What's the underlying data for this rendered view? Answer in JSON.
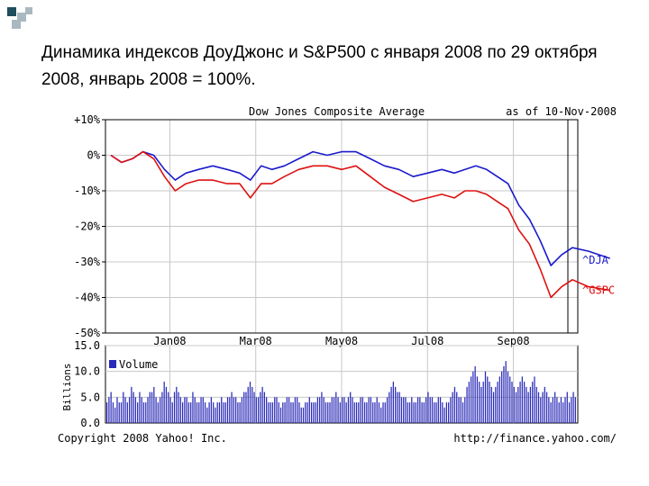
{
  "slide": {
    "title": "Динамика индексов ДоуДжонс и S&P500 с января 2008 по 29 октября 2008, январь 2008 = 100%."
  },
  "chart": {
    "header_title": "Dow Jones Composite Average",
    "header_date": "as of 10-Nov-2008",
    "copyright": "Copyright 2008 Yahoo! Inc.",
    "url": "http://finance.yahoo.com/",
    "volume_legend": "Volume",
    "volume_axis_label": "Billions"
  },
  "colors": {
    "dja": "#1a1acc",
    "gspc": "#dd1111",
    "volume": "#2a2ab8",
    "grid": "#c8c8c8",
    "frame": "#000000",
    "bullet_dark": "#1f4e5f",
    "bullet_light": "#aab8c0"
  },
  "chart_data": [
    {
      "type": "line",
      "title": "Dow Jones Composite Average",
      "y_tick_labels": [
        "+10%",
        "0%",
        "-10%",
        "-20%",
        "-30%",
        "-40%",
        "-50%"
      ],
      "y_ticks": [
        10,
        0,
        -10,
        -20,
        -30,
        -40,
        -50
      ],
      "ylim": [
        -50,
        10
      ],
      "x_tick_labels": [
        "Jan08",
        "Mar08",
        "May08",
        "Jul08",
        "Sep08"
      ],
      "x_ticks": [
        "2008-01",
        "2008-03",
        "2008-05",
        "2008-07",
        "2008-09"
      ],
      "xlim": [
        "2007-12",
        "2008-11"
      ],
      "grid": true,
      "legend": "labels at right end of lines",
      "series": [
        {
          "name": "^DJA",
          "x": [
            "2007-12",
            "2007-12",
            "2007-12",
            "2007-12",
            "2008-01",
            "2008-01",
            "2008-01",
            "2008-01",
            "2008-02",
            "2008-02",
            "2008-02",
            "2008-03",
            "2008-03",
            "2008-03",
            "2008-03",
            "2008-04",
            "2008-04",
            "2008-04",
            "2008-05",
            "2008-05",
            "2008-05",
            "2008-06",
            "2008-06",
            "2008-06",
            "2008-07",
            "2008-07",
            "2008-07",
            "2008-08",
            "2008-08",
            "2008-08",
            "2008-08",
            "2008-09",
            "2008-09",
            "2008-09",
            "2008-09",
            "2008-10",
            "2008-10",
            "2008-10",
            "2008-10",
            "2008-11",
            "2008-11"
          ],
          "y": [
            0,
            -2,
            -1,
            1,
            0,
            -4,
            -7,
            -5,
            -4,
            -3,
            -4,
            -5,
            -7,
            -3,
            -4,
            -3,
            -1,
            1,
            0,
            1,
            1,
            -1,
            -3,
            -4,
            -6,
            -5,
            -4,
            -5,
            -4,
            -3,
            -4,
            -6,
            -8,
            -14,
            -18,
            -24,
            -31,
            -28,
            -26,
            -27,
            -29
          ],
          "color": "#1a1acc"
        },
        {
          "name": "^GSPC",
          "x": [
            "2007-12",
            "2007-12",
            "2007-12",
            "2007-12",
            "2008-01",
            "2008-01",
            "2008-01",
            "2008-01",
            "2008-02",
            "2008-02",
            "2008-02",
            "2008-03",
            "2008-03",
            "2008-03",
            "2008-03",
            "2008-04",
            "2008-04",
            "2008-04",
            "2008-05",
            "2008-05",
            "2008-05",
            "2008-06",
            "2008-06",
            "2008-06",
            "2008-07",
            "2008-07",
            "2008-07",
            "2008-08",
            "2008-08",
            "2008-08",
            "2008-08",
            "2008-09",
            "2008-09",
            "2008-09",
            "2008-09",
            "2008-10",
            "2008-10",
            "2008-10",
            "2008-10",
            "2008-11",
            "2008-11"
          ],
          "y": [
            0,
            -2,
            -1,
            1,
            -1,
            -6,
            -10,
            -8,
            -7,
            -7,
            -8,
            -8,
            -12,
            -8,
            -8,
            -6,
            -4,
            -3,
            -3,
            -4,
            -3,
            -6,
            -9,
            -11,
            -13,
            -12,
            -11,
            -12,
            -10,
            -10,
            -11,
            -13,
            -15,
            -21,
            -25,
            -32,
            -40,
            -37,
            -35,
            -37,
            -38
          ],
          "color": "#dd1111"
        }
      ]
    },
    {
      "type": "bar",
      "title": "Volume",
      "ylabel": "Billions",
      "ylim": [
        0,
        15
      ],
      "y_ticks": [
        0,
        5,
        10,
        15
      ],
      "y_tick_labels": [
        "0.0",
        "5.0",
        "10.0",
        "15.0"
      ],
      "grid": true,
      "series": [
        {
          "name": "Volume",
          "values": [
            4,
            5,
            6,
            4,
            3,
            5,
            4,
            4,
            6,
            5,
            4,
            5,
            7,
            6,
            5,
            4,
            6,
            5,
            4,
            4,
            5,
            6,
            6,
            7,
            5,
            4,
            5,
            6,
            8,
            7,
            6,
            5,
            4,
            6,
            7,
            6,
            5,
            4,
            5,
            5,
            4,
            4,
            6,
            5,
            4,
            4,
            5,
            5,
            4,
            3,
            4,
            5,
            4,
            3,
            4,
            4,
            5,
            4,
            4,
            5,
            5,
            6,
            5,
            5,
            4,
            4,
            5,
            6,
            6,
            7,
            8,
            7,
            6,
            5,
            5,
            6,
            7,
            6,
            5,
            4,
            4,
            4,
            5,
            5,
            4,
            3,
            4,
            4,
            5,
            5,
            4,
            4,
            5,
            5,
            4,
            3,
            3,
            4,
            4,
            5,
            4,
            4,
            4,
            5,
            5,
            6,
            5,
            4,
            4,
            4,
            5,
            5,
            6,
            5,
            4,
            5,
            5,
            4,
            5,
            6,
            5,
            4,
            4,
            4,
            5,
            5,
            4,
            4,
            5,
            5,
            4,
            4,
            5,
            4,
            3,
            4,
            4,
            5,
            6,
            7,
            8,
            7,
            6,
            6,
            5,
            5,
            5,
            4,
            4,
            5,
            4,
            4,
            5,
            5,
            4,
            4,
            5,
            6,
            5,
            5,
            4,
            4,
            5,
            5,
            4,
            3,
            4,
            4,
            5,
            6,
            7,
            6,
            5,
            5,
            4,
            5,
            7,
            8,
            9,
            10,
            11,
            9,
            8,
            7,
            8,
            10,
            9,
            8,
            7,
            6,
            7,
            8,
            9,
            10,
            11,
            12,
            10,
            9,
            8,
            7,
            6,
            7,
            8,
            9,
            8,
            7,
            6,
            7,
            8,
            9,
            7,
            6,
            5,
            6,
            7,
            6,
            5,
            4,
            5,
            6,
            5,
            4,
            5,
            4,
            5,
            6,
            4,
            5,
            6,
            5
          ],
          "color": "#2a2ab8"
        }
      ]
    }
  ]
}
